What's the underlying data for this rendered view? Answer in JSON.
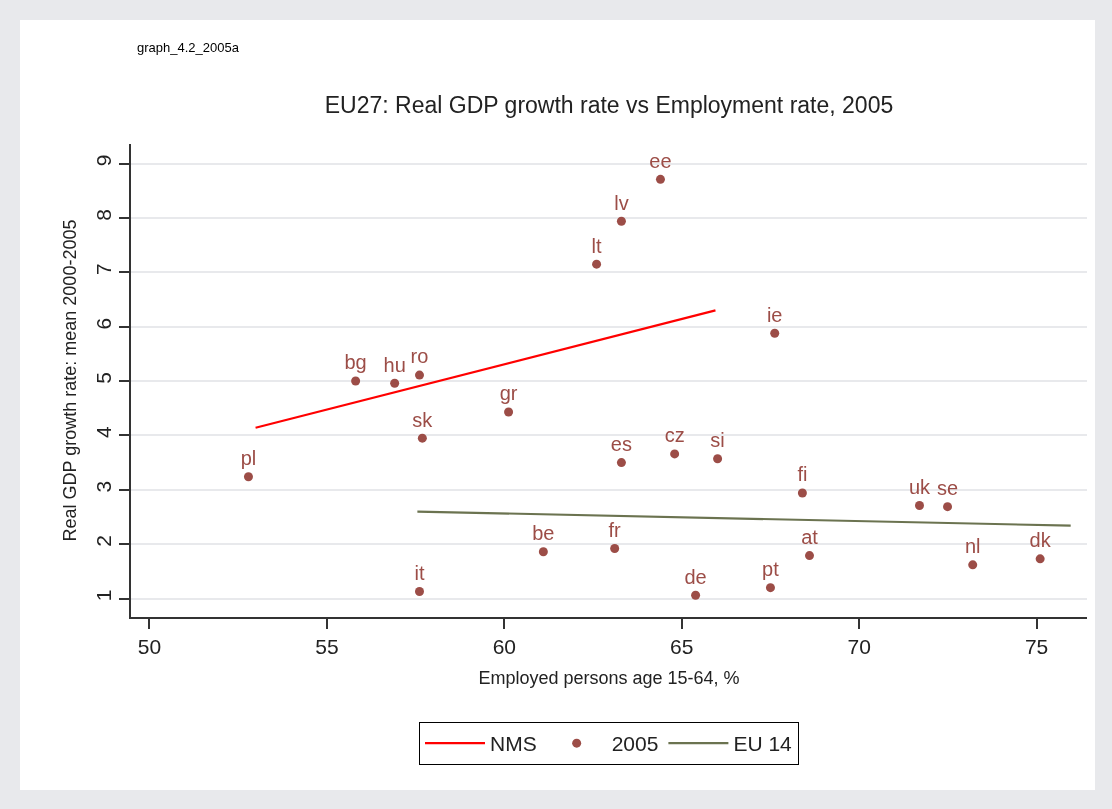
{
  "chart_data": {
    "type": "scatter",
    "title": "EU27: Real GDP growth rate vs Employment rate, 2005",
    "xlabel": "Employed persons age 15-64, %",
    "ylabel": "Real GDP growth rate: mean 2000-2005",
    "annotations": [
      "graph_4.2_2005a"
    ],
    "xlim": [
      49.48,
      76.42
    ],
    "ylim": [
      0.66,
      9.36
    ],
    "xticks": [
      50,
      55,
      60,
      65,
      70,
      75
    ],
    "yticks": [
      1,
      2,
      3,
      4,
      5,
      6,
      7,
      8,
      9
    ],
    "grid": "y",
    "legend": "bottom",
    "series": [
      {
        "name": "NMS",
        "type": "line",
        "color": "#ff0000",
        "x": [
          52.99,
          65.95
        ],
        "values": [
          4.14,
          6.3
        ]
      },
      {
        "name": "2005",
        "marker": "circle",
        "color": "#9c4d47",
        "x": [
          64.4,
          63.3,
          62.6,
          67.62,
          55.81,
          56.91,
          57.61,
          60.12,
          57.69,
          52.79,
          63.3,
          64.8,
          66.01,
          68.4,
          71.7,
          72.49,
          61.1,
          63.11,
          57.61,
          65.39,
          67.5,
          68.6,
          73.2,
          75.1
        ],
        "values": [
          8.71,
          7.94,
          7.15,
          5.88,
          5.0,
          4.96,
          5.11,
          4.43,
          3.95,
          3.24,
          3.5,
          3.66,
          3.57,
          2.94,
          2.71,
          2.69,
          1.86,
          1.92,
          1.13,
          1.06,
          1.2,
          1.79,
          1.62,
          1.73
        ],
        "value_labels": [
          "ee",
          "lv",
          "lt",
          "ie",
          "bg",
          "hu",
          "ro",
          "gr",
          "sk",
          "pl",
          "es",
          "cz",
          "si",
          "fi",
          "uk",
          "se",
          "be",
          "fr",
          "it",
          "de",
          "pt",
          "at",
          "nl",
          "dk"
        ]
      },
      {
        "name": "EU 14",
        "type": "line",
        "color": "#6b7350",
        "x": [
          57.55,
          75.96
        ],
        "values": [
          2.6,
          2.34
        ]
      }
    ]
  }
}
